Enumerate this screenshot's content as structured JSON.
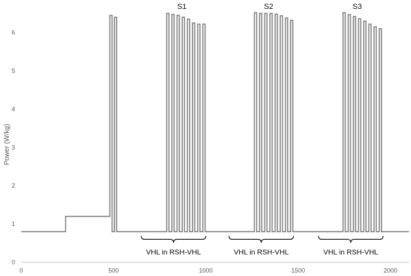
{
  "chart_data": {
    "type": "line",
    "title": "",
    "xlabel": "",
    "ylabel": "Power (W/kg)",
    "xlim": [
      0,
      2100
    ],
    "ylim": [
      0,
      6.6
    ],
    "x_ticks": [
      0,
      500,
      1000,
      1500,
      2000
    ],
    "y_ticks": [
      0,
      1,
      2,
      3,
      4,
      5,
      6
    ],
    "grid": false,
    "legend": "none",
    "colors": {
      "line": "#808080",
      "axis": "#bfbfbf",
      "bracket": "#000000"
    },
    "baseline_power": 0.8,
    "step": {
      "x_start": 240,
      "x_end": 480,
      "value": 1.2
    },
    "sprint_width": 12,
    "series": [
      {
        "points": [
          [
            0,
            0.8
          ],
          [
            240,
            0.8
          ],
          [
            240,
            1.2
          ],
          [
            480,
            1.2
          ],
          [
            480,
            6.45
          ],
          [
            492,
            6.45
          ],
          [
            492,
            0.8
          ],
          [
            505,
            0.8
          ],
          [
            505,
            6.4
          ],
          [
            517,
            6.4
          ],
          [
            517,
            0.8
          ],
          [
            788,
            0.8
          ],
          [
            788,
            6.5
          ],
          [
            800,
            6.5
          ],
          [
            800,
            0.8
          ],
          [
            816,
            0.8
          ],
          [
            816,
            6.47
          ],
          [
            828,
            6.47
          ],
          [
            828,
            0.8
          ],
          [
            844,
            0.8
          ],
          [
            844,
            6.45
          ],
          [
            856,
            6.45
          ],
          [
            856,
            0.8
          ],
          [
            872,
            0.8
          ],
          [
            872,
            6.4
          ],
          [
            884,
            6.4
          ],
          [
            884,
            0.8
          ],
          [
            900,
            0.8
          ],
          [
            900,
            6.35
          ],
          [
            912,
            6.35
          ],
          [
            912,
            0.8
          ],
          [
            928,
            0.8
          ],
          [
            928,
            6.25
          ],
          [
            940,
            6.25
          ],
          [
            940,
            0.8
          ],
          [
            956,
            0.8
          ],
          [
            956,
            6.22
          ],
          [
            968,
            6.22
          ],
          [
            968,
            0.8
          ],
          [
            984,
            0.8
          ],
          [
            984,
            6.22
          ],
          [
            996,
            6.22
          ],
          [
            996,
            0.8
          ],
          [
            1263,
            0.8
          ],
          [
            1263,
            6.52
          ],
          [
            1275,
            6.52
          ],
          [
            1275,
            0.8
          ],
          [
            1291,
            0.8
          ],
          [
            1291,
            6.5
          ],
          [
            1303,
            6.5
          ],
          [
            1303,
            0.8
          ],
          [
            1319,
            0.8
          ],
          [
            1319,
            6.5
          ],
          [
            1331,
            6.5
          ],
          [
            1331,
            0.8
          ],
          [
            1347,
            0.8
          ],
          [
            1347,
            6.5
          ],
          [
            1359,
            6.5
          ],
          [
            1359,
            0.8
          ],
          [
            1375,
            0.8
          ],
          [
            1375,
            6.48
          ],
          [
            1387,
            6.48
          ],
          [
            1387,
            0.8
          ],
          [
            1403,
            0.8
          ],
          [
            1403,
            6.44
          ],
          [
            1415,
            6.44
          ],
          [
            1415,
            0.8
          ],
          [
            1431,
            0.8
          ],
          [
            1431,
            6.38
          ],
          [
            1443,
            6.38
          ],
          [
            1443,
            0.8
          ],
          [
            1459,
            0.8
          ],
          [
            1459,
            6.32
          ],
          [
            1471,
            6.32
          ],
          [
            1471,
            0.8
          ],
          [
            1743,
            0.8
          ],
          [
            1743,
            6.52
          ],
          [
            1755,
            6.52
          ],
          [
            1755,
            0.8
          ],
          [
            1771,
            0.8
          ],
          [
            1771,
            6.47
          ],
          [
            1783,
            6.47
          ],
          [
            1783,
            0.8
          ],
          [
            1799,
            0.8
          ],
          [
            1799,
            6.42
          ],
          [
            1811,
            6.42
          ],
          [
            1811,
            0.8
          ],
          [
            1827,
            0.8
          ],
          [
            1827,
            6.36
          ],
          [
            1839,
            6.36
          ],
          [
            1839,
            0.8
          ],
          [
            1855,
            0.8
          ],
          [
            1855,
            6.3
          ],
          [
            1867,
            6.3
          ],
          [
            1867,
            0.8
          ],
          [
            1883,
            0.8
          ],
          [
            1883,
            6.22
          ],
          [
            1895,
            6.22
          ],
          [
            1895,
            0.8
          ],
          [
            1911,
            0.8
          ],
          [
            1911,
            6.15
          ],
          [
            1923,
            6.15
          ],
          [
            1923,
            0.8
          ],
          [
            1939,
            0.8
          ],
          [
            1939,
            6.1
          ],
          [
            1951,
            6.1
          ],
          [
            1951,
            0.8
          ],
          [
            2100,
            0.8
          ]
        ]
      }
    ],
    "annotations": [
      {
        "text": "S1",
        "x": 870,
        "y": 6.62
      },
      {
        "text": "S2",
        "x": 1340,
        "y": 6.62
      },
      {
        "text": "S3",
        "x": 1820,
        "y": 6.62
      }
    ],
    "brackets": [
      {
        "x_start": 650,
        "x_end": 1000,
        "y": 0.6,
        "label": "VHL in RSH-VHL"
      },
      {
        "x_start": 1125,
        "x_end": 1475,
        "y": 0.6,
        "label": "VHL in RSH-VHL"
      },
      {
        "x_start": 1610,
        "x_end": 1960,
        "y": 0.6,
        "label": "VHL in RSH-VHL"
      }
    ]
  }
}
